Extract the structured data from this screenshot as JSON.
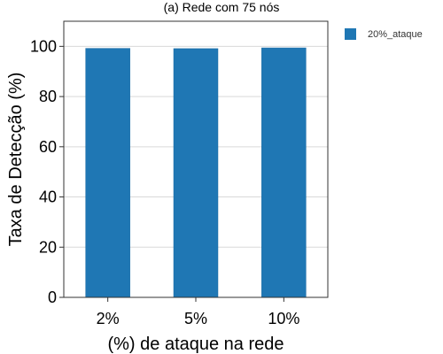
{
  "chart_data": {
    "type": "bar",
    "title": "(a) Rede com 75 nós",
    "xlabel": "(%) de ataque na rede",
    "ylabel": "Taxa de Detecção (%)",
    "categories": [
      "2%",
      "5%",
      "10%"
    ],
    "series": [
      {
        "name": "20%_ataque",
        "values": [
          99.2,
          99.1,
          99.4
        ],
        "color": "#1f77b4"
      }
    ],
    "ylim": [
      0,
      110
    ],
    "yticks": [
      0,
      20,
      40,
      60,
      80,
      100
    ],
    "grid": true,
    "legend_position": "top-right"
  }
}
